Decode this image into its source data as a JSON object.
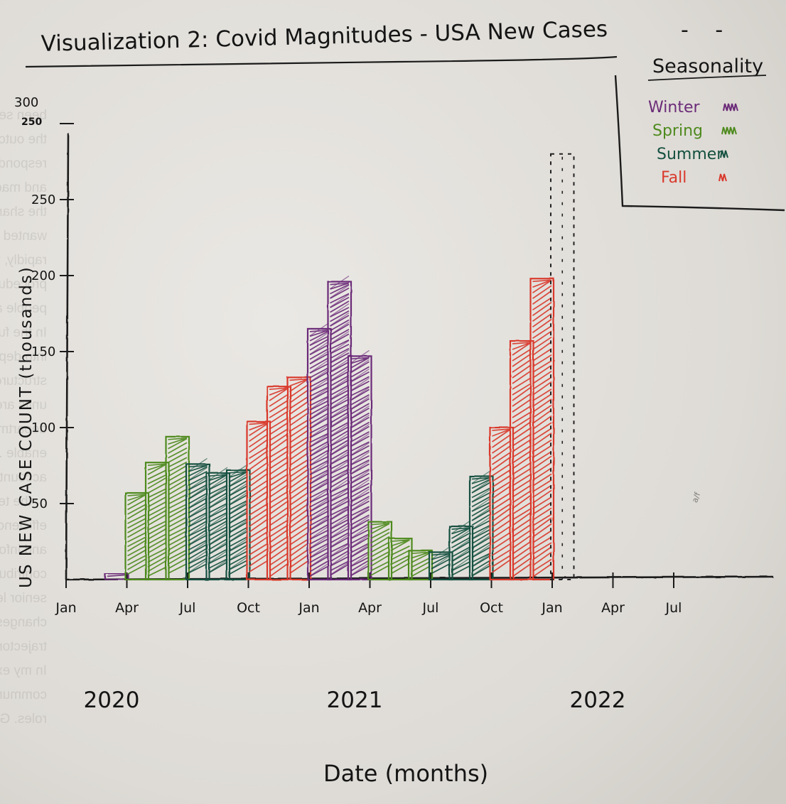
{
  "chart_data": {
    "type": "bar",
    "title": "Visualization 2: Covid Magnitudes - USA New Cases",
    "xlabel": "Date (months)",
    "ylabel": "US NEW CASE COUNT (thousands)",
    "ylim": [
      0,
      310
    ],
    "yticks": [
      {
        "value": 300,
        "label": "300"
      },
      {
        "value": 50,
        "label": "50"
      },
      {
        "value": 100,
        "label": "100"
      },
      {
        "value": 150,
        "label": "150"
      },
      {
        "value": 200,
        "label": "200"
      },
      {
        "value": 250,
        "label": "250"
      }
    ],
    "xticks": [
      {
        "date": "2020-01",
        "label": "Jan"
      },
      {
        "date": "2020-04",
        "label": "Apr"
      },
      {
        "date": "2020-07",
        "label": "Jul"
      },
      {
        "date": "2020-10",
        "label": "Oct"
      },
      {
        "date": "2021-01",
        "label": "Jan"
      },
      {
        "date": "2021-04",
        "label": "Apr"
      },
      {
        "date": "2021-07",
        "label": "Jul"
      },
      {
        "date": "2021-10",
        "label": "Oct"
      },
      {
        "date": "2022-01",
        "label": "Jan"
      },
      {
        "date": "2022-04",
        "label": "Apr"
      },
      {
        "date": "2022-07",
        "label": "Jul"
      }
    ],
    "years": [
      {
        "date": "2020-01",
        "label": "2020"
      },
      {
        "date": "2021-01",
        "label": "2021"
      },
      {
        "date": "2022-01",
        "label": "2022"
      }
    ],
    "legend": {
      "title": "Seasonality",
      "placement": "top-right",
      "entries": [
        {
          "season": "winter",
          "label": "Winter",
          "color": "#6b2a78"
        },
        {
          "season": "spring",
          "label": "Spring",
          "color": "#4e8a1e"
        },
        {
          "season": "summer",
          "label": "Summer",
          "color": "#14503f"
        },
        {
          "season": "fall",
          "label": "Fall",
          "color": "#d9392c"
        }
      ]
    },
    "bars": [
      {
        "date": "2020-03",
        "value": 4,
        "season": "winter"
      },
      {
        "date": "2020-04",
        "value": 57,
        "season": "spring"
      },
      {
        "date": "2020-05",
        "value": 77,
        "season": "spring"
      },
      {
        "date": "2020-06",
        "value": 94,
        "season": "spring"
      },
      {
        "date": "2020-07",
        "value": 76,
        "season": "summer"
      },
      {
        "date": "2020-08",
        "value": 70,
        "season": "summer"
      },
      {
        "date": "2020-09",
        "value": 72,
        "season": "summer"
      },
      {
        "date": "2020-10",
        "value": 104,
        "season": "fall"
      },
      {
        "date": "2020-11",
        "value": 127,
        "season": "fall"
      },
      {
        "date": "2020-12",
        "value": 133,
        "season": "fall"
      },
      {
        "date": "2021-01",
        "value": 165,
        "season": "winter"
      },
      {
        "date": "2021-02",
        "value": 196,
        "season": "winter"
      },
      {
        "date": "2021-03",
        "value": 147,
        "season": "winter"
      },
      {
        "date": "2021-04",
        "value": 38,
        "season": "spring"
      },
      {
        "date": "2021-05",
        "value": 27,
        "season": "spring"
      },
      {
        "date": "2021-06",
        "value": 19,
        "season": "spring"
      },
      {
        "date": "2021-07",
        "value": 18,
        "season": "summer"
      },
      {
        "date": "2021-08",
        "value": 35,
        "season": "summer"
      },
      {
        "date": "2021-09",
        "value": 68,
        "season": "summer"
      },
      {
        "date": "2021-10",
        "value": 100,
        "season": "fall"
      },
      {
        "date": "2021-11",
        "value": 157,
        "season": "fall"
      },
      {
        "date": "2021-12",
        "value": 198,
        "season": "fall"
      },
      {
        "date": "2022-01",
        "value": 280,
        "season": "winter",
        "dashed": true
      }
    ]
  },
  "corner_marks": "- -",
  "margin_scribble": "a/f",
  "bleed_through": [
    "been sensitive to strategic decisions and...",
    "the outcomes, which was likely...",
    "responding and overlapping within and across teams,",
    "and made decision-making slower and more difficult for",
    "the shared emphasis on overall structure when they joined. The",
    "wanted more structure to meet customer demands and losing money",
    "rapidly, this led to a more defined structure. More defined roles,",
    "procedures and processes were needed to coordinate work and hold",
    "people accountable as Connective grew.",
    "In the functional structure, tasks are grouped by functional expertise",
    "into departments like engineering, and ... in the divisional",
    "structure, teams are organized by product or markets. Functional",
    "units are ... in the hierarchy and ... silos ...",
    "departments ... shared services ...",
    "enable ... silo thinking ...",
    "accountability ... structure ...",
    "... the team ...",
    "efficiency and consistency trying to maintain ... of more teams",
    "and information. However, the constant structural changes likely",
    "contributed to employee anxiety. I may have relied more on the input of",
    "senior leaders instead of implementing such frequent, top-down",
    "changes. But Brewer's efforts certainly have put Connective on a growth",
    "trajectory.",
    "In my experience with organizational restructuring, it is critical to",
    "communicate early and often about the reasons for change and new",
    "roles. Giving people time to provide input into the process leads to"
  ]
}
